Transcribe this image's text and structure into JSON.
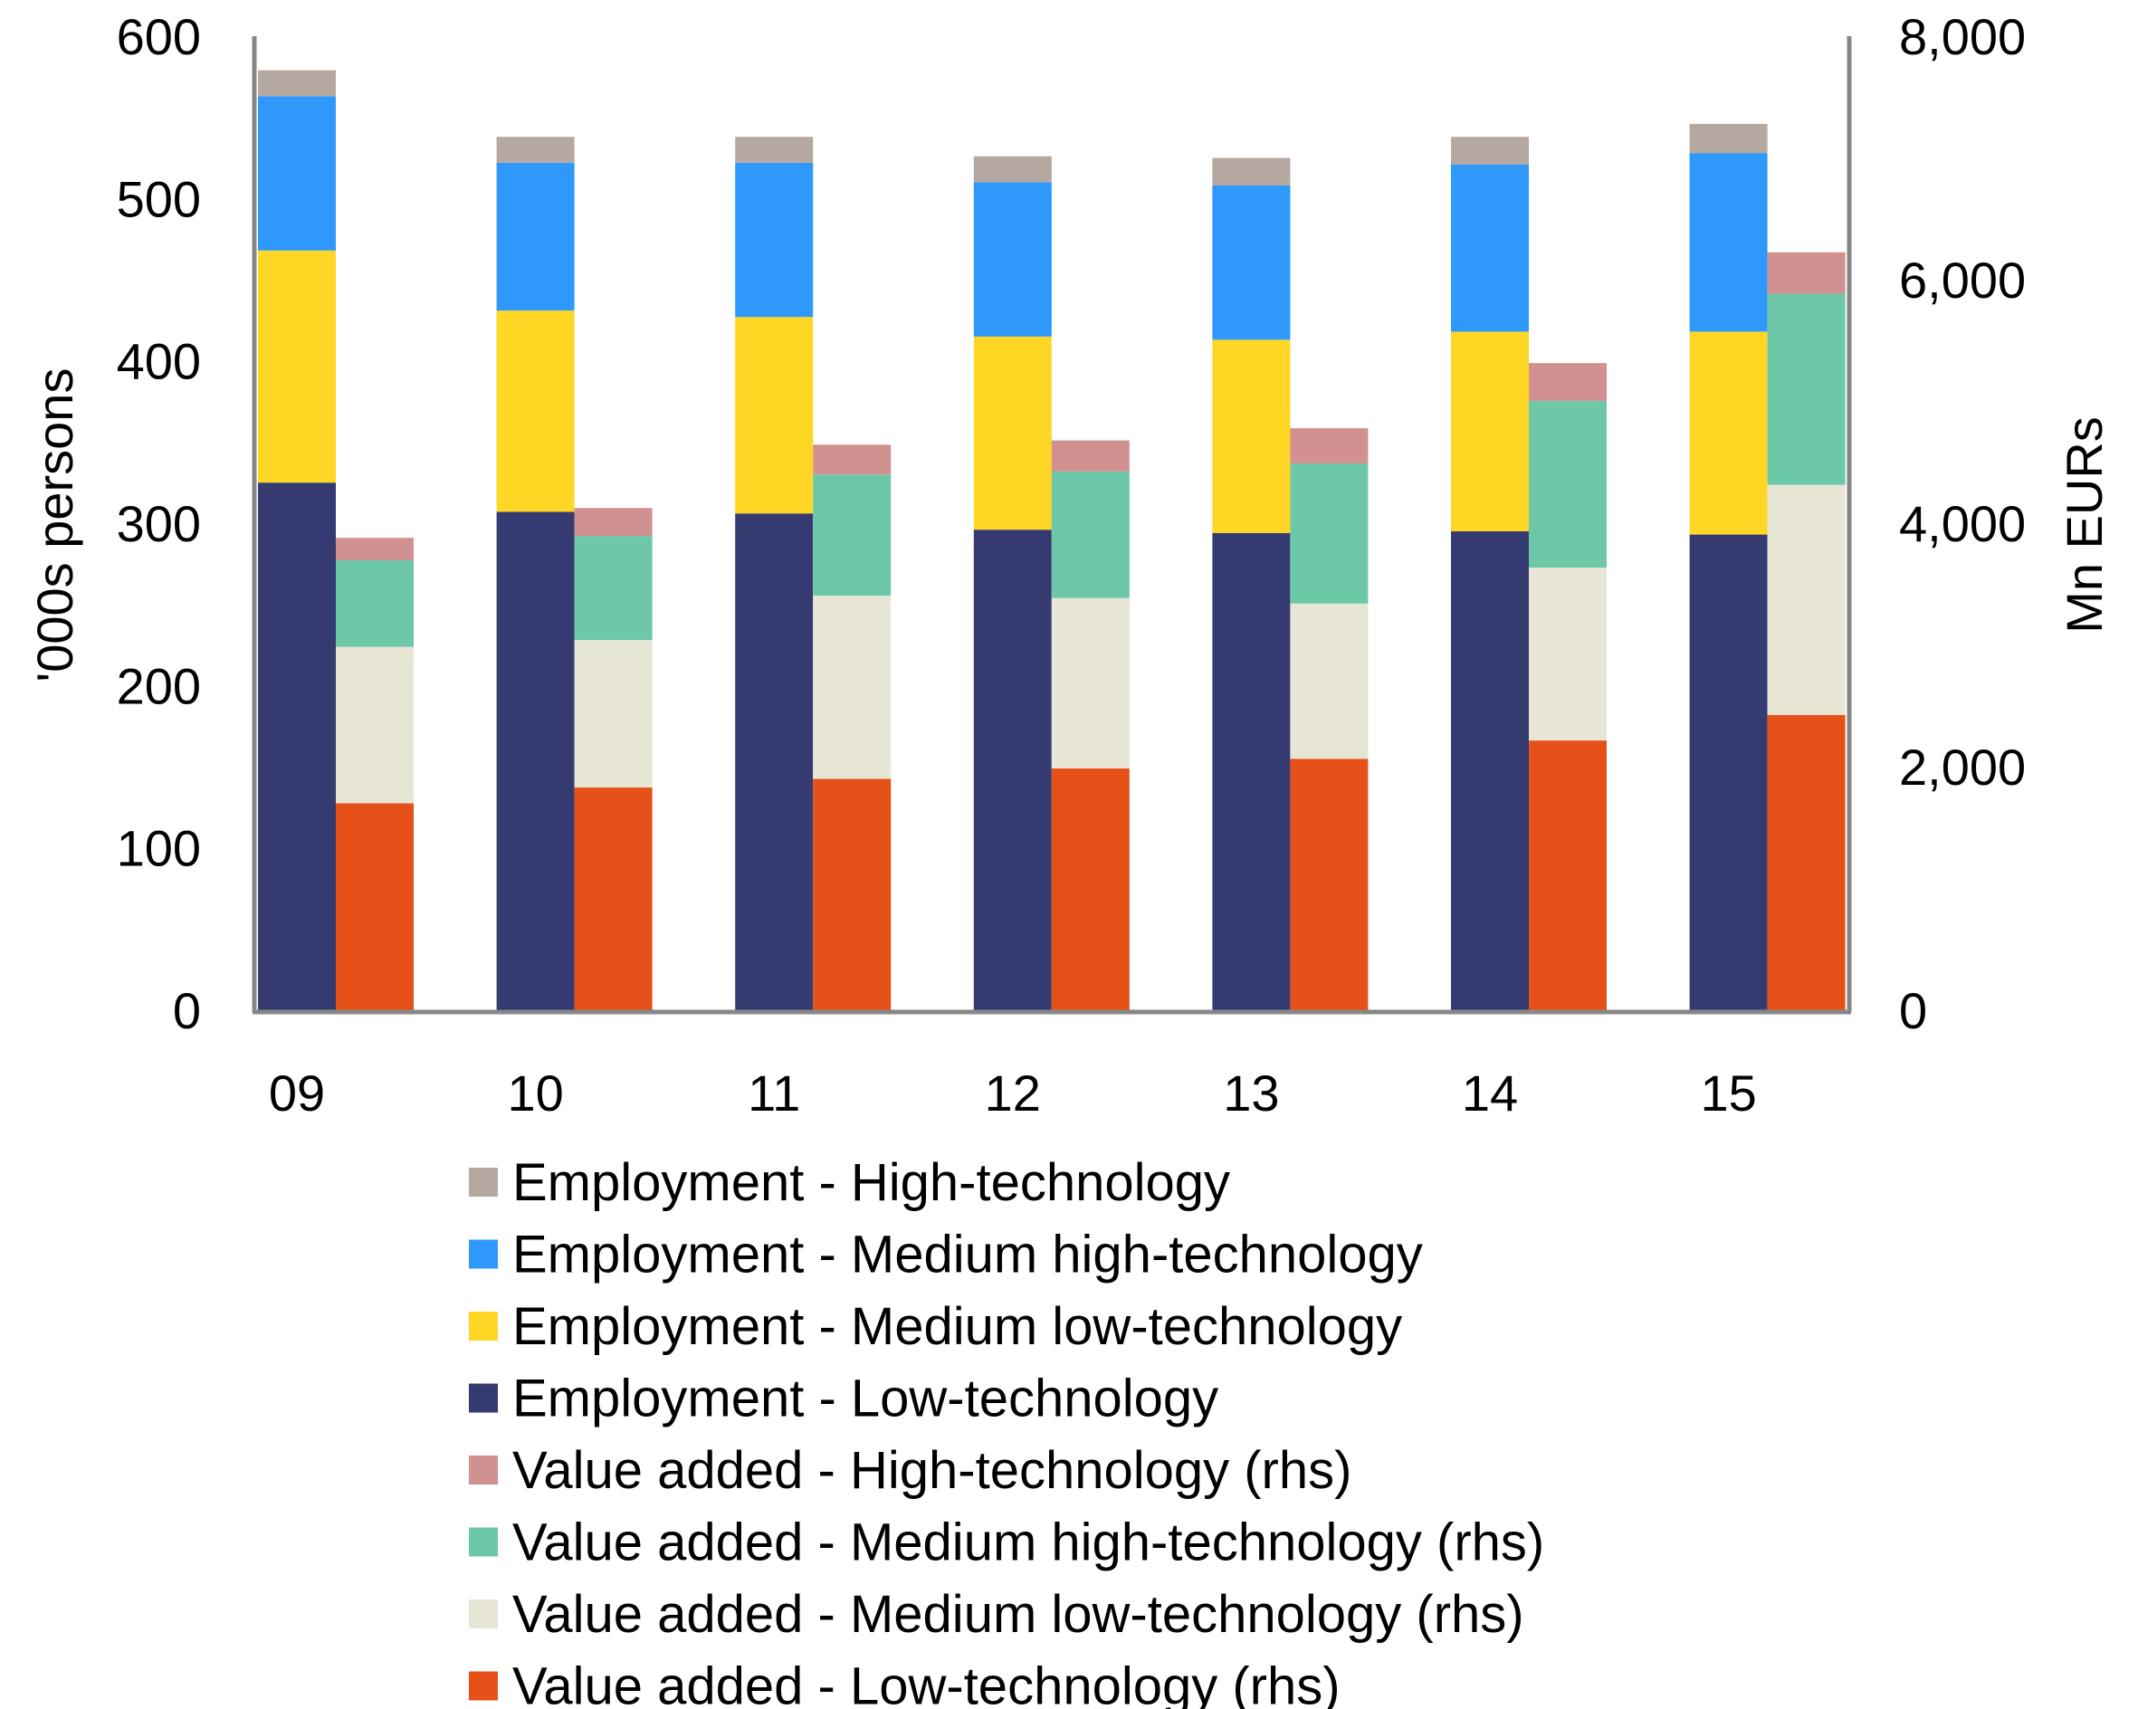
{
  "chart_data": {
    "type": "bar",
    "stacked": true,
    "title": "",
    "xlabel": "",
    "ylabel": "'000s persons",
    "ylabel_right": "Mn EURs",
    "ylim": [
      0,
      600
    ],
    "ylim_right": [
      0,
      8000
    ],
    "yticks": [
      "0",
      "100",
      "200",
      "300",
      "400",
      "500",
      "600"
    ],
    "yticks_right": [
      "0",
      "2,000",
      "4,000",
      "6,000",
      "8,000"
    ],
    "grid": false,
    "legend_position": "bottom",
    "categories": [
      "09",
      "10",
      "11",
      "12",
      "13",
      "14",
      "15"
    ],
    "groups": [
      {
        "name": "Employment",
        "axis": "left",
        "series": [
          {
            "name": "Employment - Low-technology",
            "color": "#353b70",
            "values": [
              325,
              307,
              306,
              296,
              294,
              295,
              293
            ]
          },
          {
            "name": "Employment - Medium low-technology",
            "color": "#ffd624",
            "values": [
              143,
              124,
              121,
              119,
              119,
              123,
              125
            ]
          },
          {
            "name": "Employment - Medium high-technology",
            "color": "#2e98fb",
            "values": [
              95,
              91,
              95,
              95,
              95,
              103,
              110
            ]
          },
          {
            "name": "Employment - High-technology",
            "color": "#b5a8a0",
            "values": [
              16,
              16,
              16,
              16,
              17,
              17,
              18
            ]
          }
        ]
      },
      {
        "name": "Value added",
        "axis": "right",
        "series": [
          {
            "name": "Value added - Low-technology (rhs)",
            "color": "#e55119",
            "values": [
              1700,
              1830,
              1900,
              1985,
              2065,
              2215,
              2425
            ]
          },
          {
            "name": "Value added - Medium low-technology (rhs)",
            "color": "#e7e6d5",
            "values": [
              1285,
              1210,
              1505,
              1400,
              1275,
              1420,
              1890
            ]
          },
          {
            "name": "Value added - Medium high-technology (rhs)",
            "color": "#6dc8a8",
            "values": [
              710,
              855,
              995,
              1040,
              1150,
              1370,
              1570
            ]
          },
          {
            "name": "Value added - High-technology (rhs)",
            "color": "#d19190",
            "values": [
              185,
              230,
              245,
              255,
              290,
              310,
              340
            ]
          }
        ]
      }
    ],
    "legend": [
      {
        "label": "Employment - High-technology",
        "color": "#b5a8a0"
      },
      {
        "label": "Employment - Medium high-technology",
        "color": "#2e98fb"
      },
      {
        "label": "Employment - Medium low-technology",
        "color": "#ffd624"
      },
      {
        "label": "Employment - Low-technology",
        "color": "#353b70"
      },
      {
        "label": "Value added - High-technology (rhs)",
        "color": "#d19190"
      },
      {
        "label": "Value added - Medium high-technology (rhs)",
        "color": "#6dc8a8"
      },
      {
        "label": "Value added - Medium low-technology (rhs)",
        "color": "#e7e6d5"
      },
      {
        "label": "Value added - Low-technology (rhs)",
        "color": "#e55119"
      }
    ],
    "axis_color": "#878787"
  }
}
